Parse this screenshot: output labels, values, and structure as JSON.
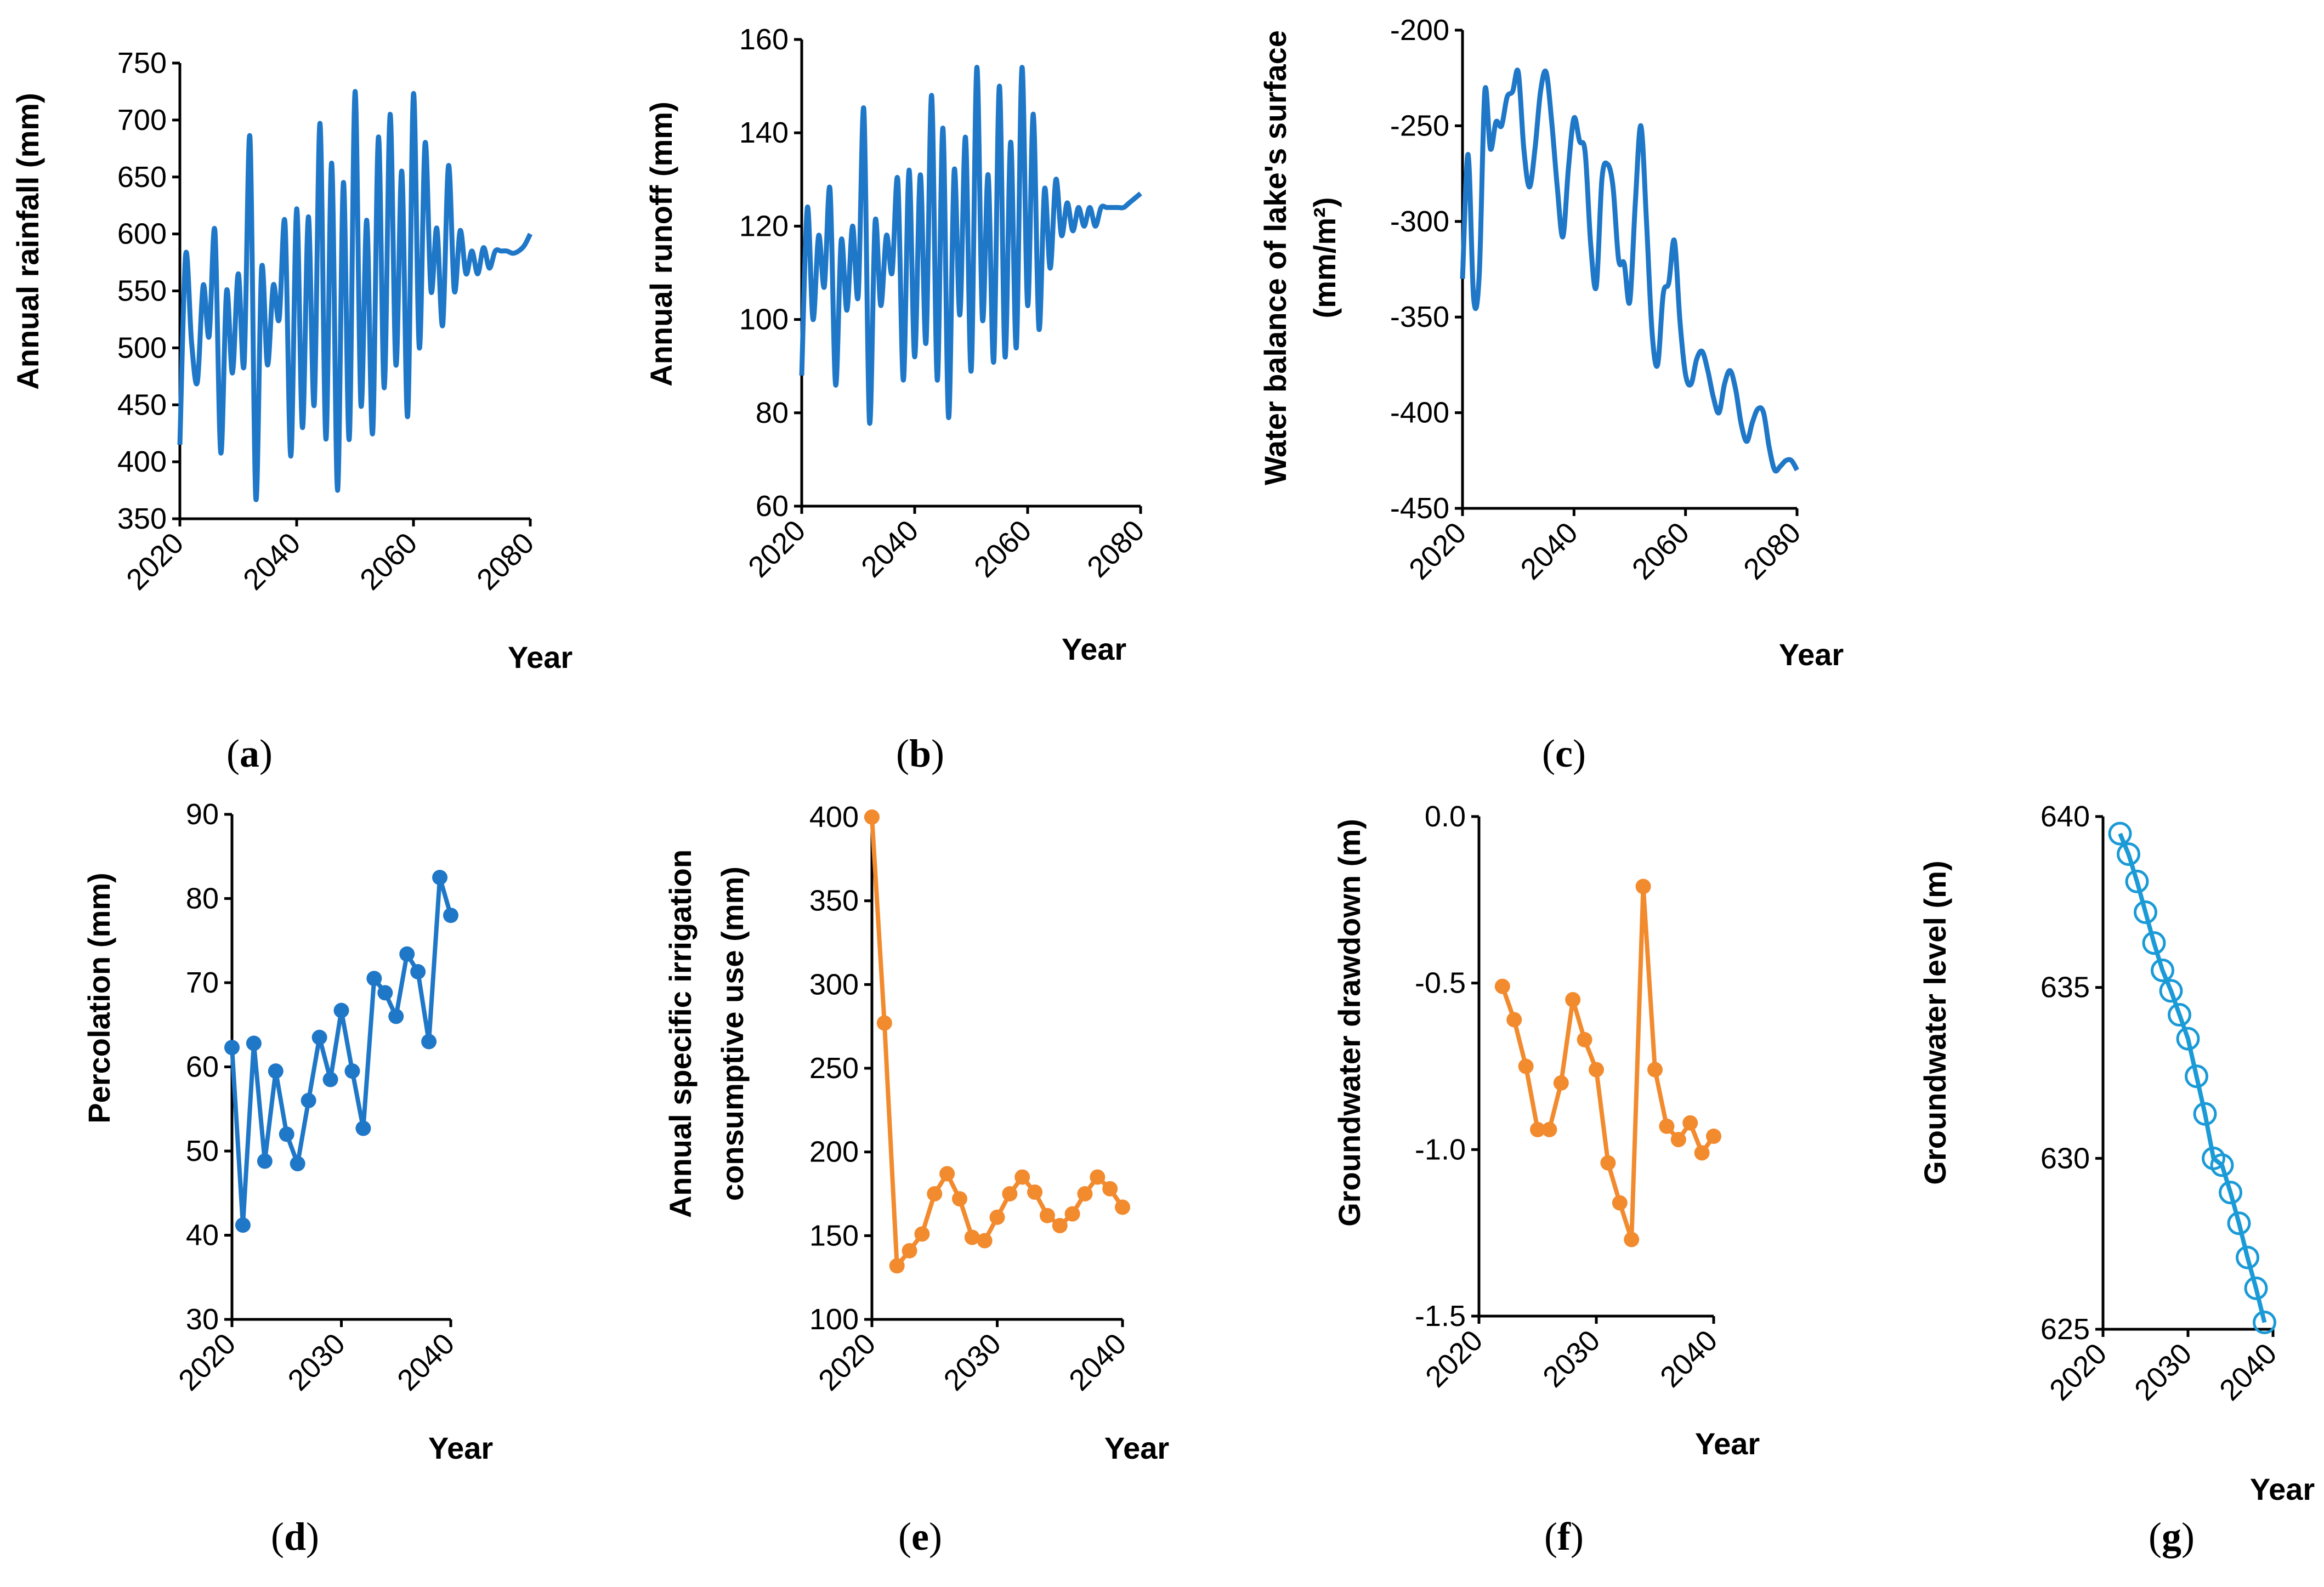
{
  "figure_title": "",
  "colors": {
    "blue": "#1f77c8",
    "orange": "#f28a2e",
    "light_blue": "#1a9ad6",
    "axis": "#000000"
  },
  "chart_data": [
    {
      "id": "a",
      "type": "line",
      "panel_label": "a",
      "title": "",
      "xlabel": "Year",
      "ylabel": "Annual rainfall (mm)",
      "xlim": [
        2020,
        2080
      ],
      "ylim": [
        350,
        750
      ],
      "xticks": [
        "2020",
        "2040",
        "2060",
        "2080"
      ],
      "yticks": [
        "350",
        "400",
        "450",
        "500",
        "550",
        "600",
        "650",
        "700",
        "750"
      ],
      "marker": "none",
      "color": "#1f77c8",
      "series": [
        {
          "name": "Annual rainfall",
          "x": [
            2020,
            2021,
            2022,
            2023,
            2024,
            2025,
            2026,
            2027,
            2028,
            2029,
            2030,
            2031,
            2032,
            2033,
            2034,
            2035,
            2036,
            2037,
            2038,
            2039,
            2040,
            2041,
            2042,
            2043,
            2044,
            2045,
            2046,
            2047,
            2048,
            2049,
            2050,
            2051,
            2052,
            2053,
            2054,
            2055,
            2056,
            2057,
            2058,
            2059,
            2060,
            2061,
            2062,
            2063,
            2064,
            2065,
            2066,
            2067,
            2068,
            2069,
            2070,
            2071,
            2072,
            2073,
            2074,
            2075,
            2076,
            2077,
            2078,
            2079,
            2080
          ],
          "y": [
            415,
            582,
            505,
            470,
            555,
            510,
            603,
            408,
            550,
            478,
            565,
            485,
            685,
            368,
            570,
            485,
            555,
            525,
            610,
            405,
            622,
            430,
            615,
            450,
            697,
            420,
            662,
            375,
            645,
            420,
            725,
            450,
            612,
            425,
            685,
            465,
            705,
            485,
            655,
            440,
            723,
            500,
            680,
            550,
            605,
            520,
            660,
            550,
            603,
            565,
            585,
            565,
            588,
            570,
            585,
            585,
            585,
            583,
            585,
            590,
            600
          ]
        }
      ]
    },
    {
      "id": "b",
      "type": "line",
      "panel_label": "b",
      "title": "",
      "xlabel": "Year",
      "ylabel": "Annual runoff (mm)",
      "xlim": [
        2020,
        2080
      ],
      "ylim": [
        60,
        160
      ],
      "xticks": [
        "2020",
        "2040",
        "2060",
        "2080"
      ],
      "yticks": [
        "60",
        "80",
        "100",
        "120",
        "140",
        "160"
      ],
      "marker": "none",
      "color": "#1f77c8",
      "series": [
        {
          "name": "Annual runoff",
          "x": [
            2020,
            2021,
            2022,
            2023,
            2024,
            2025,
            2026,
            2027,
            2028,
            2029,
            2030,
            2031,
            2032,
            2033,
            2034,
            2035,
            2036,
            2037,
            2038,
            2039,
            2040,
            2041,
            2042,
            2043,
            2044,
            2045,
            2046,
            2047,
            2048,
            2049,
            2050,
            2051,
            2052,
            2053,
            2054,
            2055,
            2056,
            2057,
            2058,
            2059,
            2060,
            2061,
            2062,
            2063,
            2064,
            2065,
            2066,
            2067,
            2068,
            2069,
            2070,
            2071,
            2072,
            2073,
            2074,
            2075,
            2076,
            2077,
            2078,
            2079,
            2080
          ],
          "y": [
            88,
            124,
            100,
            118,
            107,
            128,
            86,
            117,
            102,
            120,
            105,
            145,
            78,
            121,
            103,
            118,
            110,
            130,
            87,
            132,
            92,
            131,
            95,
            148,
            87,
            141,
            79,
            132,
            101,
            139,
            89,
            154,
            100,
            131,
            91,
            150,
            92,
            138,
            94,
            154,
            103,
            144,
            98,
            128,
            111,
            130,
            118,
            125,
            119,
            124,
            120,
            124,
            120,
            124,
            124,
            124,
            124,
            124,
            125,
            126,
            127
          ]
        }
      ]
    },
    {
      "id": "c",
      "type": "line",
      "panel_label": "c",
      "title": "",
      "xlabel": "Year",
      "ylabel": "Water balance of lake's surface (mm/m²)",
      "xlim": [
        2020,
        2080
      ],
      "ylim": [
        -450,
        -200
      ],
      "xticks": [
        "2020",
        "2040",
        "2060",
        "2080"
      ],
      "yticks": [
        "-450",
        "-400",
        "-350",
        "-300",
        "-250",
        "-200"
      ],
      "marker": "none",
      "color": "#1f77c8",
      "series": [
        {
          "name": "Water balance",
          "x": [
            2020,
            2021,
            2022,
            2023,
            2024,
            2025,
            2026,
            2027,
            2028,
            2029,
            2030,
            2031,
            2032,
            2033,
            2034,
            2035,
            2036,
            2037,
            2038,
            2039,
            2040,
            2041,
            2042,
            2043,
            2044,
            2045,
            2046,
            2047,
            2048,
            2049,
            2050,
            2051,
            2052,
            2053,
            2054,
            2055,
            2056,
            2057,
            2058,
            2059,
            2060,
            2061,
            2062,
            2063,
            2064,
            2065,
            2066,
            2067,
            2068,
            2069,
            2070,
            2071,
            2072,
            2073,
            2074,
            2075,
            2076,
            2077,
            2078,
            2079,
            2080
          ],
          "y": [
            -330,
            -265,
            -340,
            -328,
            -232,
            -262,
            -248,
            -250,
            -235,
            -232,
            -222,
            -262,
            -282,
            -262,
            -232,
            -222,
            -248,
            -282,
            -308,
            -272,
            -246,
            -258,
            -264,
            -312,
            -334,
            -278,
            -270,
            -282,
            -320,
            -322,
            -342,
            -290,
            -250,
            -300,
            -358,
            -375,
            -338,
            -332,
            -310,
            -352,
            -380,
            -385,
            -372,
            -368,
            -378,
            -392,
            -400,
            -385,
            -378,
            -388,
            -406,
            -415,
            -405,
            -398,
            -400,
            -418,
            -430,
            -428,
            -425,
            -425,
            -430
          ]
        }
      ]
    },
    {
      "id": "d",
      "type": "line",
      "panel_label": "d",
      "title": "",
      "xlabel": "Year",
      "ylabel": "Percolation (mm)",
      "xlim": [
        2020,
        2040
      ],
      "ylim": [
        30,
        90
      ],
      "xticks": [
        "2020",
        "2030",
        "2040"
      ],
      "yticks": [
        "30",
        "40",
        "50",
        "60",
        "70",
        "80",
        "90"
      ],
      "marker": "filled-circle",
      "color": "#1f77c8",
      "series": [
        {
          "name": "Percolation",
          "x": [
            2020,
            2021,
            2022,
            2023,
            2024,
            2025,
            2026,
            2027,
            2028,
            2029,
            2030,
            2031,
            2032,
            2033,
            2034,
            2035,
            2036,
            2037,
            2038,
            2039,
            2040
          ],
          "y": [
            62.3,
            41.2,
            62.8,
            48.8,
            59.5,
            52.0,
            48.5,
            56.0,
            63.5,
            58.5,
            66.7,
            59.5,
            52.7,
            70.5,
            68.8,
            66.0,
            73.4,
            71.3,
            63.0,
            82.5,
            78.0
          ]
        }
      ]
    },
    {
      "id": "e",
      "type": "line",
      "panel_label": "e",
      "title": "",
      "xlabel": "Year",
      "ylabel": "Annual  specific irrigation consumptive use (mm)",
      "xlim": [
        2020,
        2040
      ],
      "ylim": [
        100,
        400
      ],
      "xticks": [
        "2020",
        "2030",
        "2040"
      ],
      "yticks": [
        "100",
        "150",
        "200",
        "250",
        "300",
        "350",
        "400"
      ],
      "marker": "filled-circle",
      "color": "#f28a2e",
      "series": [
        {
          "name": "Irrigation use",
          "x": [
            2020,
            2021,
            2022,
            2023,
            2024,
            2025,
            2026,
            2027,
            2028,
            2029,
            2030,
            2031,
            2032,
            2033,
            2034,
            2035,
            2036,
            2037,
            2038,
            2039,
            2040
          ],
          "y": [
            400,
            277,
            132,
            141,
            151,
            175,
            187,
            172,
            149,
            147,
            161,
            175,
            185,
            176,
            162,
            156,
            163,
            175,
            185,
            178,
            167
          ]
        }
      ]
    },
    {
      "id": "f",
      "type": "line",
      "panel_label": "f",
      "title": "",
      "xlabel": "Year",
      "ylabel": "Groundwater drawdown (m)",
      "xlim": [
        2020,
        2040
      ],
      "ylim": [
        -1.5,
        0.0
      ],
      "xticks": [
        "2020",
        "2030",
        "2040"
      ],
      "yticks": [
        "-1.5",
        "-1.0",
        "-0.5",
        "0.0"
      ],
      "marker": "filled-circle",
      "color": "#f28a2e",
      "series": [
        {
          "name": "Drawdown",
          "x": [
            2022,
            2023,
            2024,
            2025,
            2026,
            2027,
            2028,
            2029,
            2030,
            2031,
            2032,
            2033,
            2034,
            2035,
            2036,
            2037,
            2038,
            2039,
            2040
          ],
          "y": [
            -0.51,
            -0.61,
            -0.75,
            -0.94,
            -0.94,
            -0.8,
            -0.55,
            -0.67,
            -0.76,
            -1.04,
            -1.16,
            -1.27,
            -0.21,
            -0.76,
            -0.93,
            -0.97,
            -0.92,
            -1.01,
            -0.96
          ]
        }
      ]
    },
    {
      "id": "g",
      "type": "line",
      "panel_label": "g",
      "title": "",
      "xlabel": "Year",
      "ylabel": "Groundwater level (m)",
      "xlim": [
        2020,
        2040
      ],
      "ylim": [
        625,
        640
      ],
      "xticks": [
        "2020",
        "2030",
        "2040"
      ],
      "yticks": [
        "625",
        "630",
        "635",
        "640"
      ],
      "marker": "hollow-circle",
      "color": "#1a9ad6",
      "series": [
        {
          "name": "Groundwater level",
          "x": [
            2022,
            2023,
            2024,
            2025,
            2026,
            2027,
            2028,
            2029,
            2030,
            2031,
            2032,
            2033,
            2034,
            2035,
            2036,
            2037,
            2038,
            2039
          ],
          "y": [
            639.5,
            638.9,
            638.1,
            637.2,
            636.3,
            635.5,
            634.9,
            634.2,
            633.5,
            632.4,
            631.3,
            630.0,
            629.8,
            629.0,
            628.1,
            627.1,
            626.2,
            625.2
          ]
        }
      ]
    }
  ]
}
